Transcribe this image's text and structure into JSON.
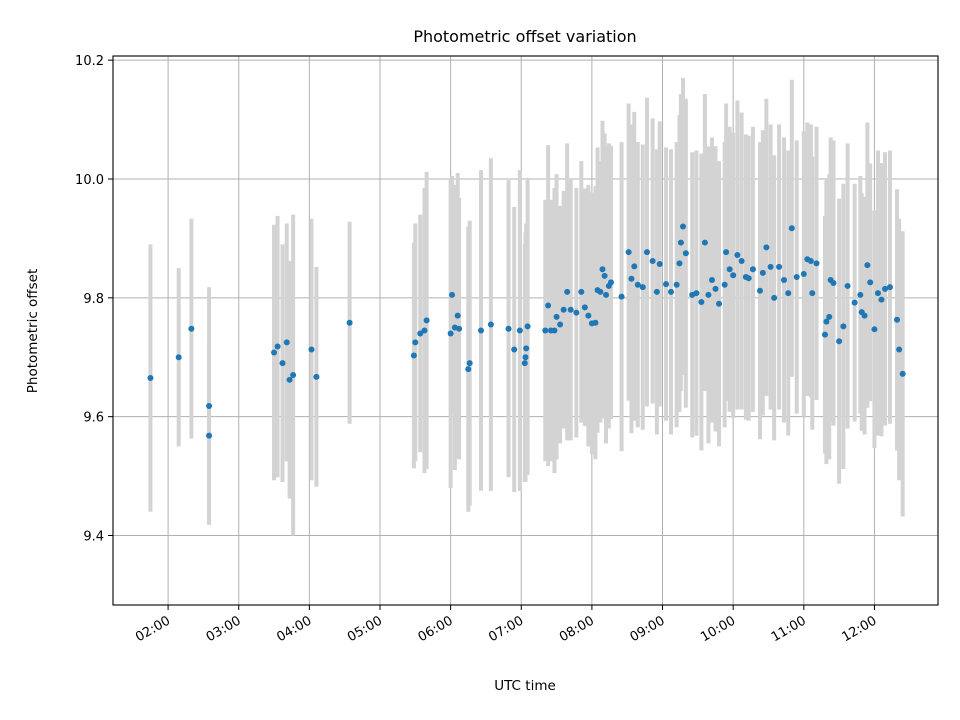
{
  "chart_data": {
    "type": "scatter",
    "title": "Photometric offset variation",
    "xlabel": "UTC time",
    "ylabel": "Photometric offset",
    "xlim": [
      1.22,
      12.9
    ],
    "ylim": [
      9.283,
      10.207
    ],
    "grid": true,
    "colors": {
      "point": "#1f77b4",
      "errorbar": "#d3d3d3"
    },
    "xticks": [
      {
        "value": 2,
        "label": "02:00"
      },
      {
        "value": 3,
        "label": "03:00"
      },
      {
        "value": 4,
        "label": "04:00"
      },
      {
        "value": 5,
        "label": "05:00"
      },
      {
        "value": 6,
        "label": "06:00"
      },
      {
        "value": 7,
        "label": "07:00"
      },
      {
        "value": 8,
        "label": "08:00"
      },
      {
        "value": 9,
        "label": "09:00"
      },
      {
        "value": 10,
        "label": "10:00"
      },
      {
        "value": 11,
        "label": "11:00"
      },
      {
        "value": 12,
        "label": "12:00"
      }
    ],
    "yticks": [
      {
        "value": 9.4,
        "label": "9.4"
      },
      {
        "value": 9.6,
        "label": "9.6"
      },
      {
        "value": 9.8,
        "label": "9.8"
      },
      {
        "value": 10.0,
        "label": "10.0"
      },
      {
        "value": 10.2,
        "label": "10.2"
      }
    ],
    "points": [
      [
        1.75,
        9.665,
        0.225
      ],
      [
        2.15,
        9.7,
        0.15
      ],
      [
        2.33,
        9.748,
        0.185
      ],
      [
        2.58,
        9.618,
        0.2
      ],
      [
        2.58,
        9.568,
        0.15
      ],
      [
        3.5,
        9.708,
        0.215
      ],
      [
        3.55,
        9.718,
        0.22
      ],
      [
        3.62,
        9.69,
        0.2
      ],
      [
        3.68,
        9.725,
        0.2
      ],
      [
        3.72,
        9.662,
        0.2
      ],
      [
        3.77,
        9.67,
        0.27
      ],
      [
        4.03,
        9.713,
        0.22
      ],
      [
        4.1,
        9.667,
        0.185
      ],
      [
        4.57,
        9.758,
        0.17
      ],
      [
        5.48,
        9.703,
        0.19
      ],
      [
        5.5,
        9.725,
        0.2
      ],
      [
        5.57,
        9.74,
        0.2
      ],
      [
        5.63,
        9.745,
        0.24
      ],
      [
        5.66,
        9.762,
        0.25
      ],
      [
        6.0,
        9.74,
        0.26
      ],
      [
        6.02,
        9.805,
        0.2
      ],
      [
        6.06,
        9.75,
        0.24
      ],
      [
        6.1,
        9.77,
        0.24
      ],
      [
        6.12,
        9.748,
        0.22
      ],
      [
        6.25,
        9.68,
        0.24
      ],
      [
        6.27,
        9.69,
        0.24
      ],
      [
        6.43,
        9.745,
        0.27
      ],
      [
        6.57,
        9.755,
        0.28
      ],
      [
        6.82,
        9.748,
        0.25
      ],
      [
        6.9,
        9.713,
        0.24
      ],
      [
        6.98,
        9.745,
        0.27
      ],
      [
        7.05,
        9.69,
        0.2
      ],
      [
        7.06,
        9.7,
        0.21
      ],
      [
        7.07,
        9.715,
        0.21
      ],
      [
        7.09,
        9.752,
        0.25
      ],
      [
        7.34,
        9.745,
        0.22
      ],
      [
        7.38,
        9.787,
        0.27
      ],
      [
        7.42,
        9.745,
        0.22
      ],
      [
        7.47,
        9.745,
        0.24
      ],
      [
        7.5,
        9.768,
        0.24
      ],
      [
        7.55,
        9.755,
        0.2
      ],
      [
        7.6,
        9.78,
        0.2
      ],
      [
        7.65,
        9.81,
        0.25
      ],
      [
        7.7,
        9.78,
        0.22
      ],
      [
        7.78,
        9.775,
        0.21
      ],
      [
        7.85,
        9.81,
        0.22
      ],
      [
        7.9,
        9.784,
        0.2
      ],
      [
        7.95,
        9.77,
        0.22
      ],
      [
        8.0,
        9.757,
        0.22
      ],
      [
        8.05,
        9.758,
        0.23
      ],
      [
        8.08,
        9.813,
        0.24
      ],
      [
        8.12,
        9.81,
        0.22
      ],
      [
        8.15,
        9.848,
        0.25
      ],
      [
        8.18,
        9.837,
        0.24
      ],
      [
        8.2,
        9.805,
        0.25
      ],
      [
        8.24,
        9.82,
        0.24
      ],
      [
        8.27,
        9.826,
        0.23
      ],
      [
        8.42,
        9.802,
        0.26
      ],
      [
        8.52,
        9.877,
        0.25
      ],
      [
        8.56,
        9.832,
        0.26
      ],
      [
        8.6,
        9.853,
        0.26
      ],
      [
        8.65,
        9.822,
        0.24
      ],
      [
        8.72,
        9.818,
        0.24
      ],
      [
        8.78,
        9.877,
        0.26
      ],
      [
        8.86,
        9.862,
        0.24
      ],
      [
        8.92,
        9.81,
        0.24
      ],
      [
        8.96,
        9.857,
        0.24
      ],
      [
        9.05,
        9.823,
        0.23
      ],
      [
        9.12,
        9.81,
        0.24
      ],
      [
        9.2,
        9.822,
        0.24
      ],
      [
        9.24,
        9.858,
        0.25
      ],
      [
        9.26,
        9.893,
        0.25
      ],
      [
        9.29,
        9.92,
        0.25
      ],
      [
        9.33,
        9.875,
        0.26
      ],
      [
        9.42,
        9.805,
        0.24
      ],
      [
        9.48,
        9.808,
        0.24
      ],
      [
        9.55,
        9.793,
        0.25
      ],
      [
        9.6,
        9.893,
        0.25
      ],
      [
        9.65,
        9.805,
        0.25
      ],
      [
        9.7,
        9.83,
        0.24
      ],
      [
        9.75,
        9.815,
        0.24
      ],
      [
        9.8,
        9.79,
        0.24
      ],
      [
        9.88,
        9.822,
        0.24
      ],
      [
        9.9,
        9.877,
        0.25
      ],
      [
        9.95,
        9.848,
        0.24
      ],
      [
        10.0,
        9.838,
        0.24
      ],
      [
        10.06,
        9.872,
        0.26
      ],
      [
        10.12,
        9.862,
        0.25
      ],
      [
        10.18,
        9.835,
        0.24
      ],
      [
        10.22,
        9.833,
        0.24
      ],
      [
        10.28,
        9.848,
        0.24
      ],
      [
        10.38,
        9.812,
        0.25
      ],
      [
        10.42,
        9.842,
        0.24
      ],
      [
        10.47,
        9.885,
        0.25
      ],
      [
        10.53,
        9.852,
        0.24
      ],
      [
        10.58,
        9.8,
        0.24
      ],
      [
        10.65,
        9.852,
        0.24
      ],
      [
        10.72,
        9.83,
        0.24
      ],
      [
        10.78,
        9.808,
        0.24
      ],
      [
        10.83,
        9.917,
        0.25
      ],
      [
        10.9,
        9.835,
        0.23
      ],
      [
        11.0,
        9.84,
        0.24
      ],
      [
        11.05,
        9.865,
        0.23
      ],
      [
        11.1,
        9.862,
        0.23
      ],
      [
        11.12,
        9.808,
        0.23
      ],
      [
        11.18,
        9.858,
        0.23
      ],
      [
        11.3,
        9.738,
        0.2
      ],
      [
        11.32,
        9.76,
        0.24
      ],
      [
        11.36,
        9.768,
        0.24
      ],
      [
        11.38,
        9.83,
        0.24
      ],
      [
        11.42,
        9.825,
        0.24
      ],
      [
        11.5,
        9.727,
        0.24
      ],
      [
        11.56,
        9.752,
        0.24
      ],
      [
        11.62,
        9.82,
        0.24
      ],
      [
        11.72,
        9.792,
        0.2
      ],
      [
        11.8,
        9.805,
        0.2
      ],
      [
        11.82,
        9.776,
        0.2
      ],
      [
        11.86,
        9.77,
        0.2
      ],
      [
        11.9,
        9.855,
        0.24
      ],
      [
        11.94,
        9.826,
        0.2
      ],
      [
        12.0,
        9.747,
        0.2
      ],
      [
        12.05,
        9.808,
        0.24
      ],
      [
        12.1,
        9.797,
        0.23
      ],
      [
        12.15,
        9.815,
        0.23
      ],
      [
        12.22,
        9.818,
        0.23
      ],
      [
        12.32,
        9.763,
        0.22
      ],
      [
        12.35,
        9.713,
        0.22
      ],
      [
        12.4,
        9.672,
        0.24
      ]
    ]
  }
}
